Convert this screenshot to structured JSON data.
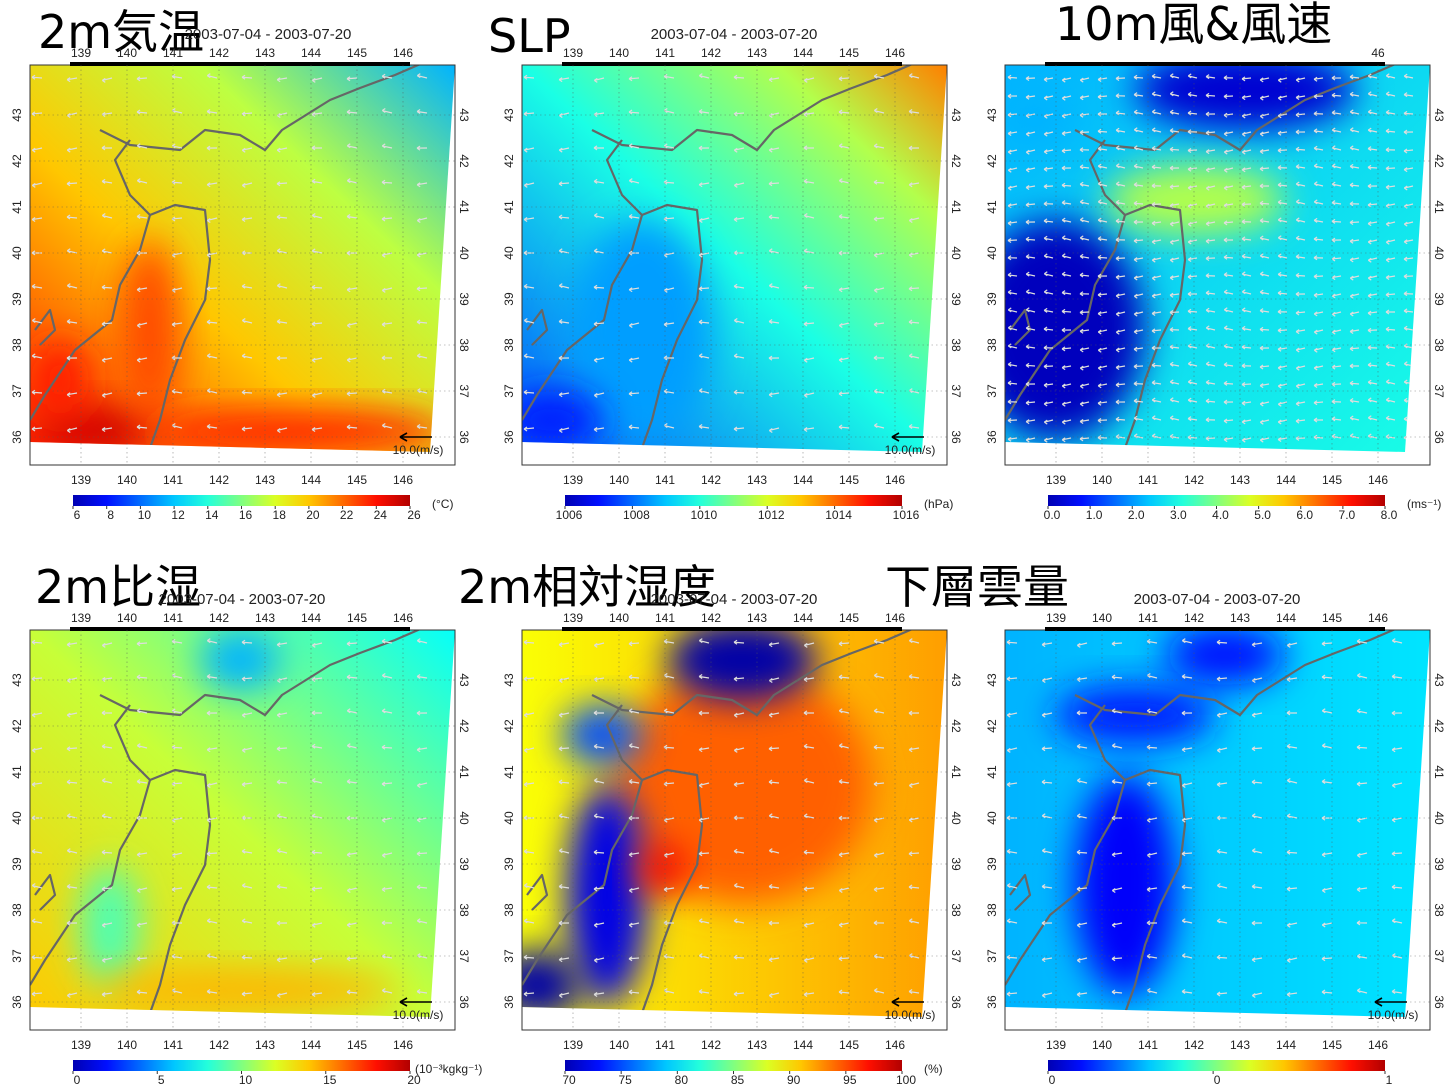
{
  "panels": [
    {
      "title": "2m気温",
      "dates": "2003-07-04 - 2003-07-20",
      "top_lon_ticks": [
        139,
        140,
        141,
        142,
        143,
        144,
        145,
        146
      ],
      "lon_ticks": [
        139,
        140,
        141,
        142,
        143,
        144,
        145,
        146
      ],
      "lat_ticks": [
        36,
        37,
        38,
        39,
        40,
        41,
        42,
        43
      ],
      "ref_vector": "10.0(m/s)",
      "clim": [
        6,
        26
      ],
      "cticks": [
        6,
        8,
        10,
        12,
        14,
        16,
        18,
        20,
        22,
        24,
        26
      ],
      "unit": "(°C)"
    },
    {
      "title": "SLP",
      "dates": "2003-07-04 - 2003-07-20",
      "top_lon_ticks": [
        139,
        140,
        141,
        142,
        143,
        144,
        145,
        146
      ],
      "lon_ticks": [
        139,
        140,
        141,
        142,
        143,
        144,
        145,
        146
      ],
      "lat_ticks": [
        36,
        37,
        38,
        39,
        40,
        41,
        42,
        43
      ],
      "ref_vector": "10.0(m/s)",
      "clim": [
        1006,
        1016
      ],
      "cticks": [
        1006,
        1008,
        1010,
        1012,
        1014,
        1016
      ],
      "unit": "(hPa)"
    },
    {
      "title": "10m風&風速",
      "top_lon_ticks": [
        {
          "value": 146,
          "label": "46"
        }
      ],
      "lon_ticks": [
        139,
        140,
        141,
        142,
        143,
        144,
        145,
        146
      ],
      "lat_ticks": [
        36,
        37,
        38,
        39,
        40,
        41,
        42,
        43
      ],
      "clim": [
        0,
        8
      ],
      "cticks": [
        {
          "value": 0,
          "label": "0.0"
        },
        {
          "value": 1,
          "label": "1.0"
        },
        {
          "value": 2,
          "label": "2.0"
        },
        {
          "value": 3,
          "label": "3.0"
        },
        {
          "value": 4,
          "label": "4.0"
        },
        {
          "value": 5,
          "label": "5.0"
        },
        {
          "value": 6,
          "label": "6.0"
        },
        {
          "value": 7,
          "label": "7.0"
        },
        {
          "value": 8,
          "label": "8.0"
        }
      ],
      "unit": "(ms⁻¹)"
    },
    {
      "title": "2m比湿",
      "dates": "2003-07-04 - 2003-07-20",
      "top_lon_ticks": [
        139,
        140,
        141,
        142,
        143,
        144,
        145,
        146
      ],
      "lon_ticks": [
        139,
        140,
        141,
        142,
        143,
        144,
        145,
        146
      ],
      "lat_ticks": [
        36,
        37,
        38,
        39,
        40,
        41,
        42,
        43
      ],
      "ref_vector": "10.0(m/s)",
      "clim": [
        0,
        20
      ],
      "cticks": [
        0,
        5,
        10,
        15,
        20
      ],
      "unit": "(10⁻³kgkg⁻¹)"
    },
    {
      "title": "2m相対湿度",
      "dates": "2003-07-04 - 2003-07-20",
      "top_lon_ticks": [
        139,
        140,
        141,
        142,
        143,
        144,
        145,
        146
      ],
      "lon_ticks": [
        139,
        140,
        141,
        142,
        143,
        144,
        145,
        146
      ],
      "lat_ticks": [
        36,
        37,
        38,
        39,
        40,
        41,
        42,
        43
      ],
      "ref_vector": "10.0(m/s)",
      "clim": [
        70,
        100
      ],
      "cticks": [
        70,
        75,
        80,
        85,
        90,
        95,
        100
      ],
      "unit": "(%)"
    },
    {
      "title": "下層雲量",
      "dates": "2003-07-04 - 2003-07-20",
      "top_lon_ticks": [
        139,
        140,
        141,
        142,
        143,
        144,
        145,
        146
      ],
      "lon_ticks": [
        139,
        140,
        141,
        142,
        143,
        144,
        145,
        146
      ],
      "lat_ticks": [
        36,
        37,
        38,
        39,
        40,
        41,
        42,
        43
      ],
      "ref_vector": "10.0(m/s)",
      "clim": [
        0,
        1
      ],
      "cticks": [
        0,
        {
          "value": 0.49,
          "label": "0"
        },
        1
      ]
    }
  ]
}
